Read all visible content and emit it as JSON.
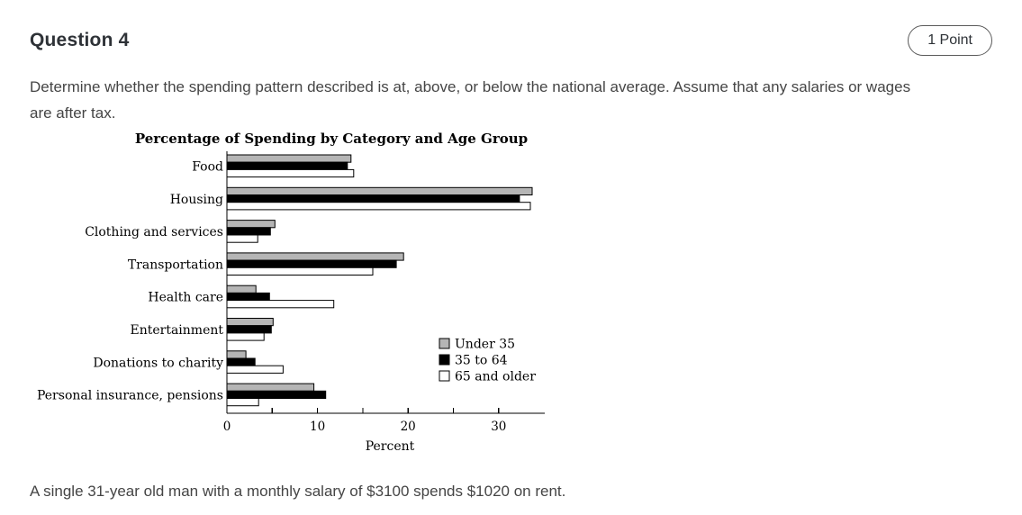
{
  "header": {
    "title": "Question 4",
    "points_badge": "1 Point"
  },
  "question": {
    "text": "Determine whether the spending pattern described is at, above, or below the national average. Assume that any salaries or wages\nare after tax."
  },
  "scenario": {
    "text": "A single 31-year old man with a monthly salary of $3100 spends $1020 on rent."
  },
  "colors": {
    "bar_outline": "#000000",
    "series_under_35": "#b5b5b5",
    "series_35_to_64": "#000000",
    "series_65_and_older": "#ffffff",
    "badge_border": "#5a5a5a",
    "body_text": "#454545",
    "heading_text": "#2e3237"
  },
  "chart_data": {
    "type": "bar",
    "orientation": "horizontal",
    "title": "Percentage of Spending by Category and Age Group",
    "categories": [
      "Food",
      "Housing",
      "Clothing and services",
      "Transportation",
      "Health care",
      "Entertainment",
      "Donations to charity",
      "Personal insurance, pensions"
    ],
    "series": [
      {
        "name": "Under 35",
        "color": "#b5b5b5",
        "values": [
          13.7,
          33.7,
          5.3,
          19.5,
          3.2,
          5.1,
          2.1,
          9.6
        ]
      },
      {
        "name": "35 to 64",
        "color": "#000000",
        "values": [
          13.3,
          32.3,
          4.8,
          18.7,
          4.7,
          4.9,
          3.1,
          10.9
        ]
      },
      {
        "name": "65 and older",
        "color": "#ffffff",
        "values": [
          14.0,
          33.5,
          3.4,
          16.1,
          11.8,
          4.1,
          6.2,
          3.5
        ]
      }
    ],
    "xlabel": "Percent",
    "xlim": [
      0,
      35
    ],
    "xticks": [
      0,
      10,
      20,
      30
    ],
    "minor_ticks": [
      5,
      15,
      25
    ],
    "grid": false,
    "legend_position": "inside-right"
  }
}
